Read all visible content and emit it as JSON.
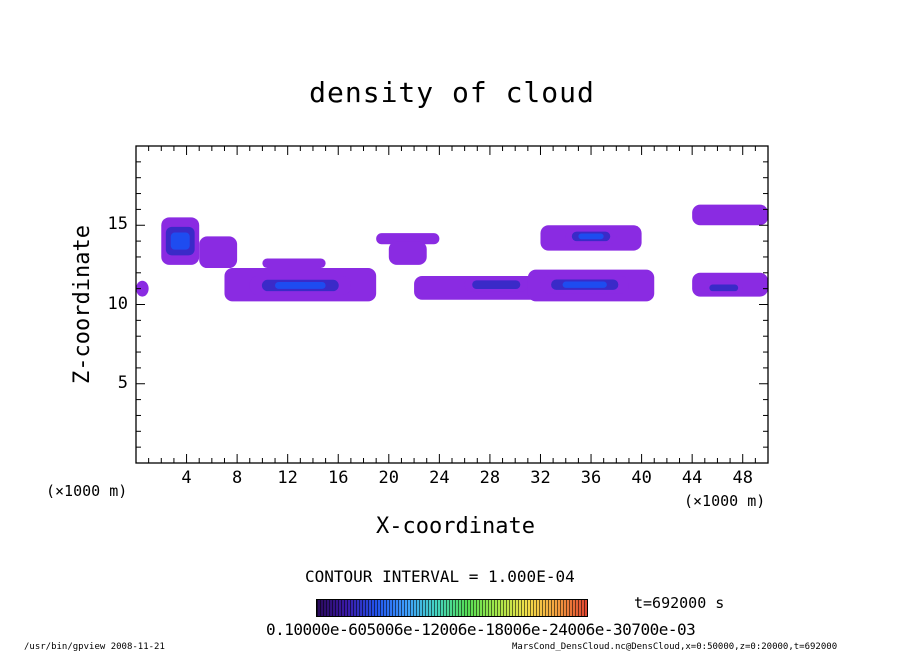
{
  "chart_data": {
    "type": "heatmap",
    "title": "density of cloud",
    "xlabel": "X-coordinate",
    "ylabel": "Z-coordinate",
    "x_unit_label": "(×1000 m)",
    "xlim": [
      0,
      50
    ],
    "ylim": [
      0,
      20
    ],
    "x_ticks": [
      "4",
      "8",
      "12",
      "16",
      "20",
      "24",
      "28",
      "32",
      "36",
      "40",
      "44",
      "48"
    ],
    "x_tick_values": [
      4,
      8,
      12,
      16,
      20,
      24,
      28,
      32,
      36,
      40,
      44,
      48
    ],
    "y_ticks": [
      "5",
      "10",
      "15"
    ],
    "y_tick_values": [
      5,
      10,
      15
    ],
    "contour_interval": "CONTOUR INTERVAL = 1.000E-04",
    "time": "t=692000 s",
    "colorbar_labels_text": "0.10000e-605006e-12006e-18006e-24006e-30700e-03",
    "colorbar_colors": [
      "#2a0a5a",
      "#3a1aa8",
      "#2255ee",
      "#3fa0ff",
      "#45d6c0",
      "#55dd55",
      "#a6e84a",
      "#f3e04a",
      "#f5a040",
      "#e04530"
    ],
    "cloud_color_outer": "#8a2be2",
    "cloud_color_mid": "#3a2ac8",
    "cloud_color_core": "#1e4cf0",
    "regions": [
      {
        "x": [
          0,
          1
        ],
        "z": [
          10.5,
          11.5
        ],
        "level": 1
      },
      {
        "x": [
          2,
          5
        ],
        "z": [
          12.5,
          15.5
        ],
        "level": 3
      },
      {
        "x": [
          5,
          8
        ],
        "z": [
          12.3,
          14.3
        ],
        "level": 1
      },
      {
        "x": [
          7,
          19
        ],
        "z": [
          10.2,
          12.3
        ],
        "level": 1
      },
      {
        "x": [
          9,
          17
        ],
        "z": [
          10.6,
          11.8
        ],
        "level": 3
      },
      {
        "x": [
          10,
          15
        ],
        "z": [
          12.3,
          12.9
        ],
        "level": 1
      },
      {
        "x": [
          19,
          24
        ],
        "z": [
          13.8,
          14.5
        ],
        "level": 1
      },
      {
        "x": [
          20,
          23
        ],
        "z": [
          12.5,
          14.0
        ],
        "level": 1
      },
      {
        "x": [
          22,
          32
        ],
        "z": [
          10.3,
          11.8
        ],
        "level": 1
      },
      {
        "x": [
          26,
          31
        ],
        "z": [
          10.8,
          11.7
        ],
        "level": 2
      },
      {
        "x": [
          31,
          41
        ],
        "z": [
          10.2,
          12.2
        ],
        "level": 1
      },
      {
        "x": [
          32,
          39
        ],
        "z": [
          10.7,
          11.8
        ],
        "level": 3
      },
      {
        "x": [
          32,
          40
        ],
        "z": [
          13.4,
          15.0
        ],
        "level": 1
      },
      {
        "x": [
          34,
          38
        ],
        "z": [
          13.8,
          14.8
        ],
        "level": 3
      },
      {
        "x": [
          44,
          50
        ],
        "z": [
          10.5,
          12.0
        ],
        "level": 1
      },
      {
        "x": [
          45,
          48
        ],
        "z": [
          10.7,
          11.4
        ],
        "level": 2
      },
      {
        "x": [
          44,
          50
        ],
        "z": [
          15.0,
          16.3
        ],
        "level": 1
      }
    ]
  },
  "footer": {
    "left": "/usr/bin/gpview   2008-11-21",
    "right": "MarsCond_DensCloud.nc@DensCloud,x=0:50000,z=0:20000,t=692000"
  }
}
